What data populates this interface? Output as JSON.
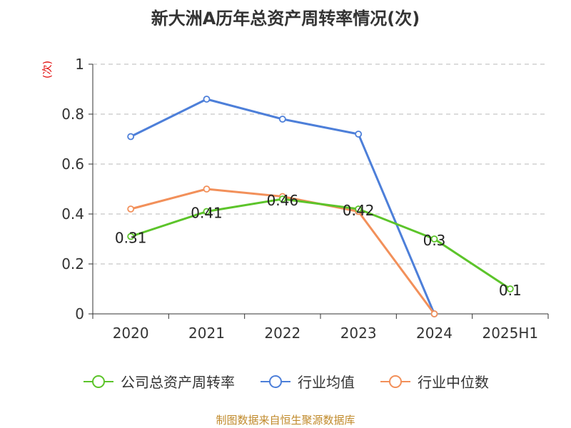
{
  "chart_data": {
    "type": "line",
    "title": "新大洲A历年总资产周转率情况(次)",
    "unit_label": "(次)",
    "categories": [
      "2020",
      "2021",
      "2022",
      "2023",
      "2024",
      "2025H1"
    ],
    "ylim": [
      0,
      1
    ],
    "yticks": [
      0,
      0.2,
      0.4,
      0.6,
      0.8,
      1
    ],
    "ytick_labels": [
      "0",
      "0.2",
      "0.4",
      "0.6",
      "0.8",
      "1"
    ],
    "grid": true,
    "legend_position": "bottom",
    "series": [
      {
        "name": "公司总资产周转率",
        "color": "#5cc42a",
        "values": [
          0.31,
          0.41,
          0.46,
          0.42,
          0.3,
          0.1
        ],
        "labels": [
          "0.31",
          "0.41",
          "0.46",
          "0.42",
          "0.3",
          "0.1"
        ]
      },
      {
        "name": "行业均值",
        "color": "#4d7fd9",
        "values": [
          0.71,
          0.86,
          0.78,
          0.72,
          0,
          null
        ]
      },
      {
        "name": "行业中位数",
        "color": "#f2905a",
        "values": [
          0.42,
          0.5,
          0.47,
          0.41,
          0,
          null
        ]
      }
    ]
  },
  "source": "制图数据来自恒生聚源数据库"
}
